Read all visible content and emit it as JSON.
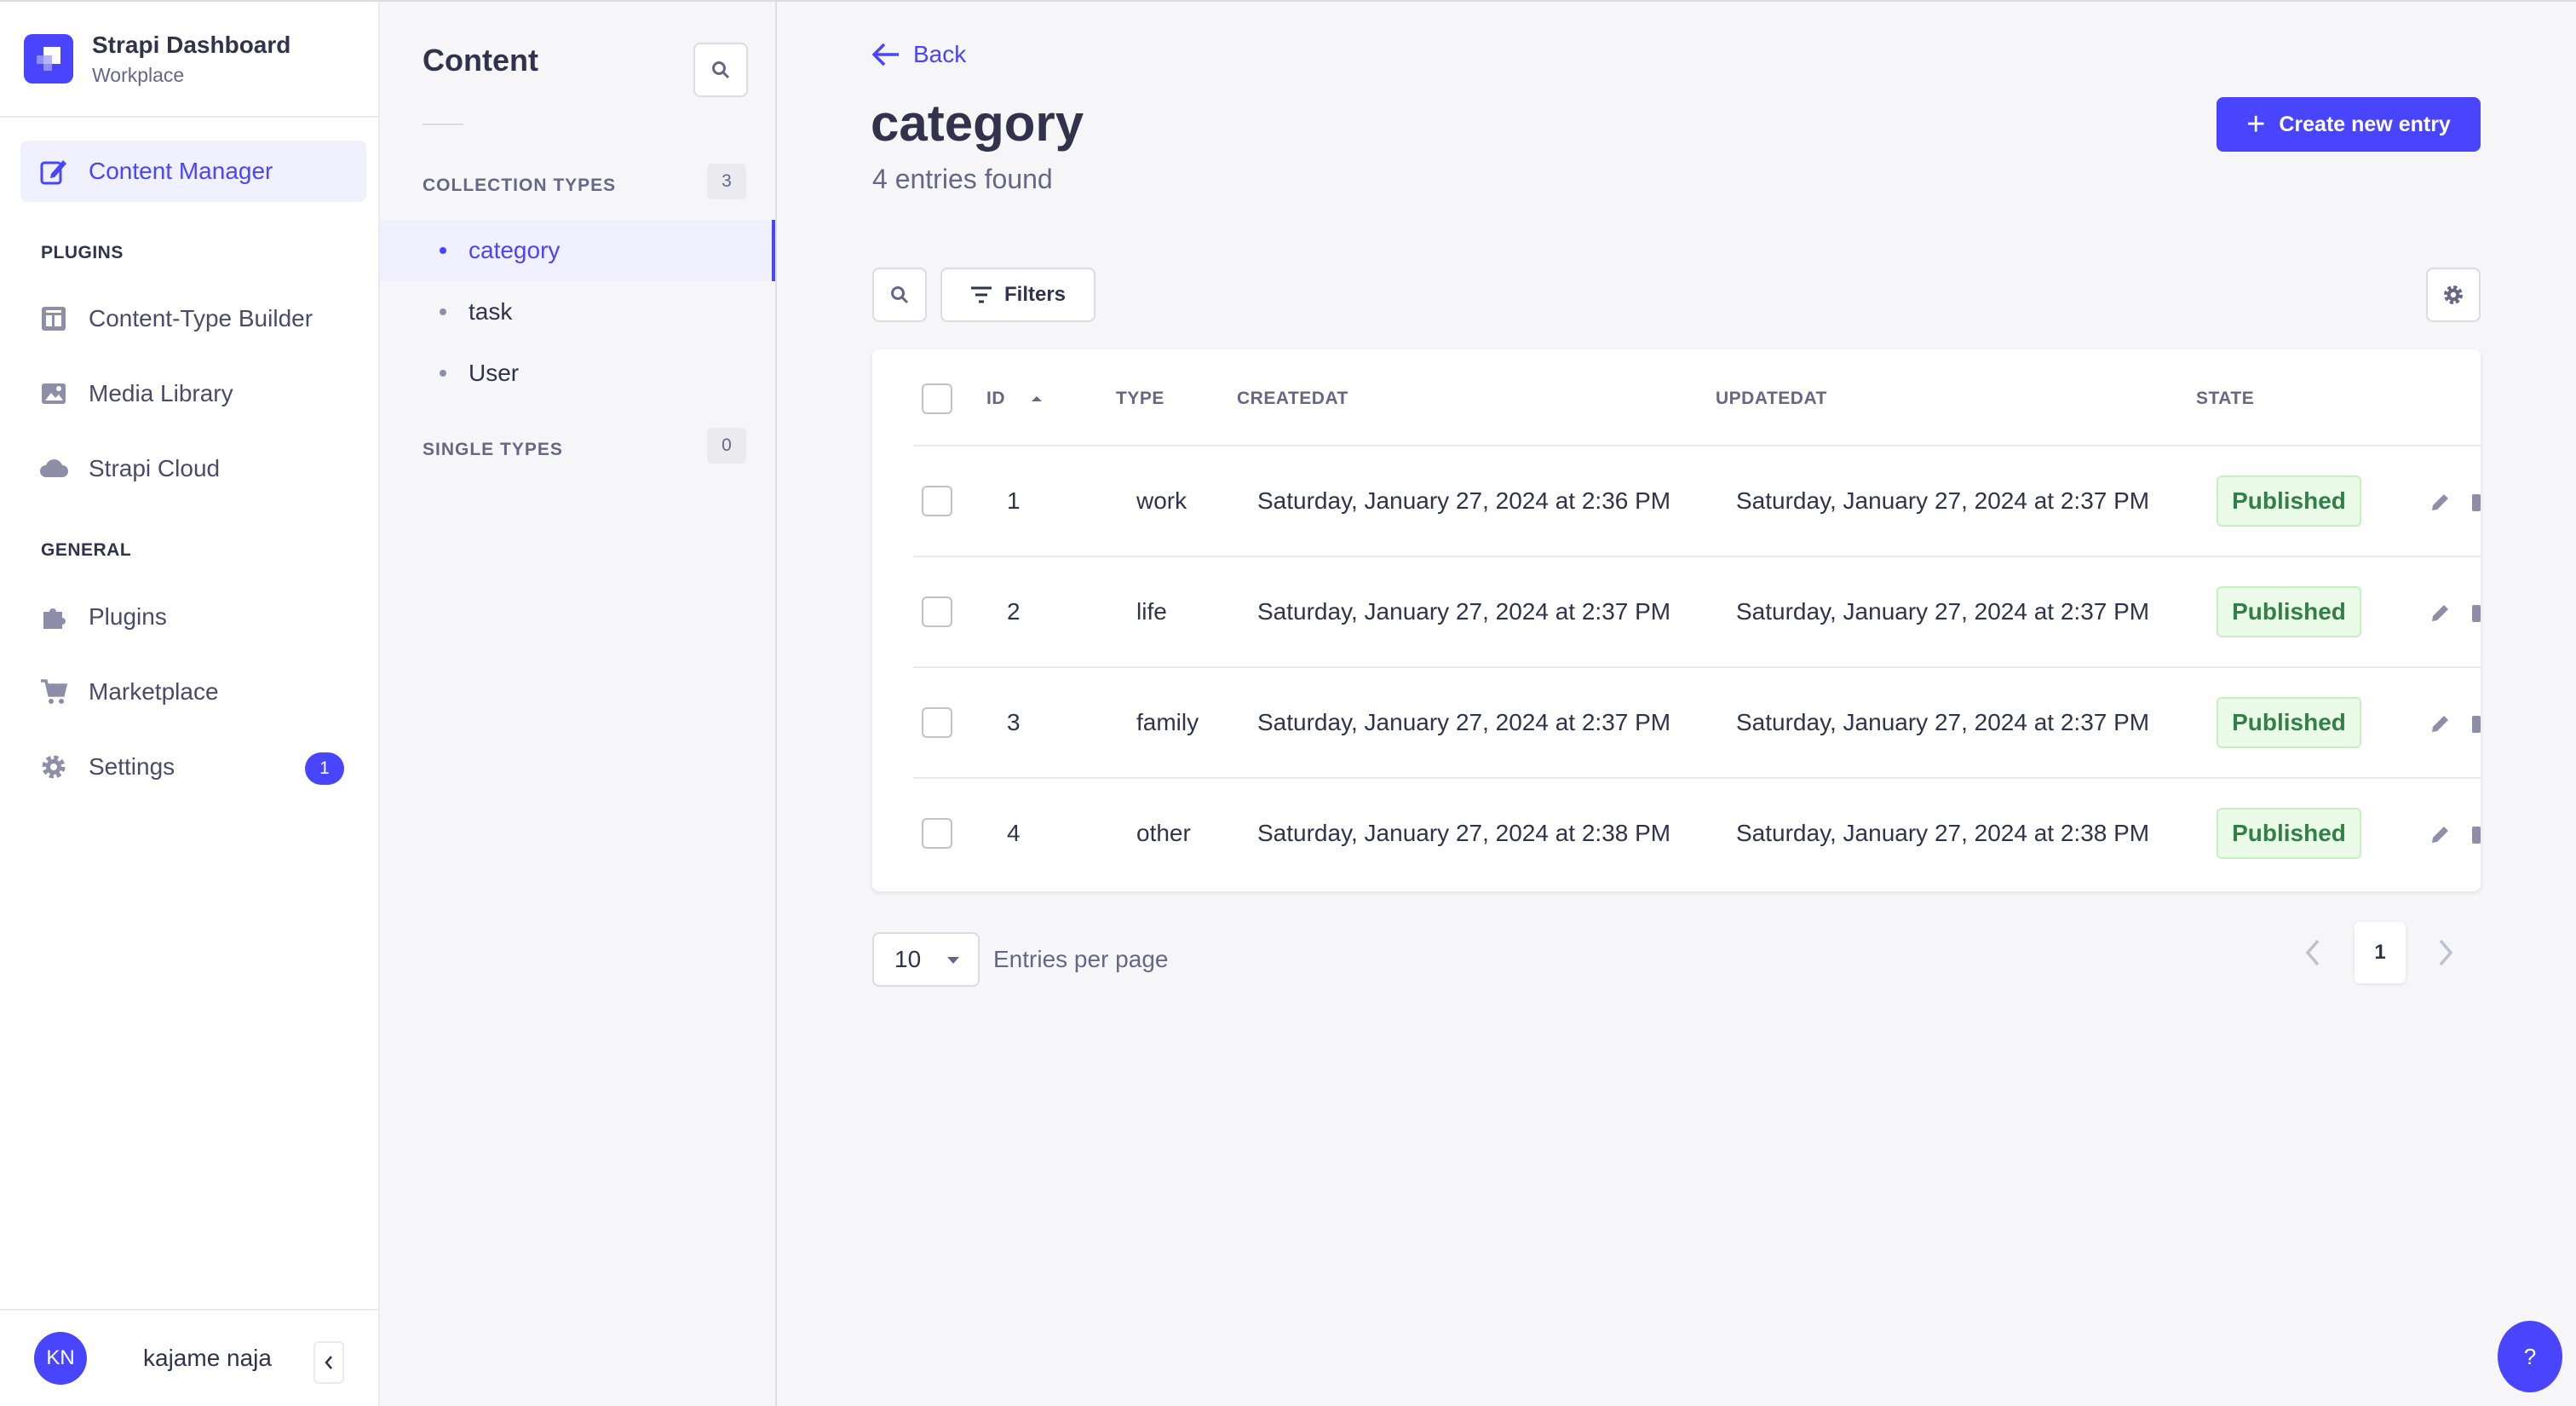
{
  "brand": {
    "title": "Strapi Dashboard",
    "subtitle": "Workplace"
  },
  "mainnav": {
    "active_item": "Content Manager",
    "plugins_heading": "PLUGINS",
    "plugins": [
      "Content-Type Builder",
      "Media Library",
      "Strapi Cloud"
    ],
    "general_heading": "GENERAL",
    "general": [
      "Plugins",
      "Marketplace",
      "Settings"
    ],
    "settings_badge": "1"
  },
  "user": {
    "initials": "KN",
    "name": "kajame naja"
  },
  "subnav": {
    "title": "Content",
    "collection_heading": "COLLECTION TYPES",
    "collection_count": "3",
    "collection_items": [
      "category",
      "task",
      "User"
    ],
    "single_heading": "SINGLE TYPES",
    "single_count": "0"
  },
  "header": {
    "back_label": "Back",
    "title": "category",
    "subtitle": "4 entries found",
    "create_label": "Create new entry"
  },
  "toolbar": {
    "filters_label": "Filters"
  },
  "table": {
    "columns": {
      "id": "ID",
      "type": "TYPE",
      "createdat": "CREATEDAT",
      "updatedat": "UPDATEDAT",
      "state": "STATE"
    },
    "rows": [
      {
        "id": "1",
        "type": "work",
        "created": "Saturday, January 27, 2024 at 2:36 PM",
        "updated": "Saturday, January 27, 2024 at 2:37 PM",
        "state": "Published"
      },
      {
        "id": "2",
        "type": "life",
        "created": "Saturday, January 27, 2024 at 2:37 PM",
        "updated": "Saturday, January 27, 2024 at 2:37 PM",
        "state": "Published"
      },
      {
        "id": "3",
        "type": "family",
        "created": "Saturday, January 27, 2024 at 2:37 PM",
        "updated": "Saturday, January 27, 2024 at 2:37 PM",
        "state": "Published"
      },
      {
        "id": "4",
        "type": "other",
        "created": "Saturday, January 27, 2024 at 2:38 PM",
        "updated": "Saturday, January 27, 2024 at 2:38 PM",
        "state": "Published"
      }
    ]
  },
  "pagination": {
    "page_size": "10",
    "per_page_label": "Entries per page",
    "current_page": "1"
  },
  "help_label": "?",
  "colors": {
    "primary": "#4945ff",
    "success_text": "#328048",
    "success_bg": "#eafbe7"
  }
}
